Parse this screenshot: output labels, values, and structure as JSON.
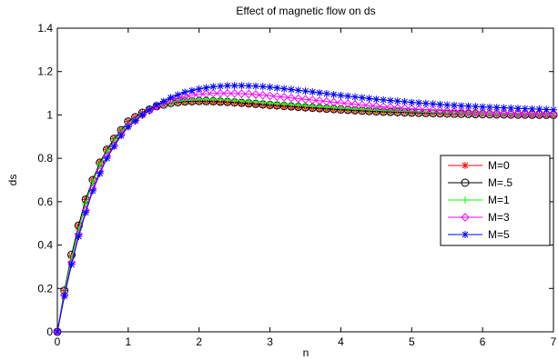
{
  "chart_data": {
    "type": "line",
    "title": "Effect of magnetic flow on ds",
    "xlabel": "n",
    "ylabel": "ds",
    "xlim": [
      0,
      7
    ],
    "ylim": [
      0,
      1.4
    ],
    "xticks": [
      0,
      1,
      2,
      3,
      4,
      5,
      6,
      7
    ],
    "yticks": [
      0,
      0.2,
      0.4,
      0.6,
      0.8,
      1,
      1.2,
      1.4
    ],
    "grid": false,
    "legend_position": "right",
    "series": [
      {
        "name": "M=0",
        "color": "#ff0000",
        "marker": "star",
        "x": [
          0,
          0.1,
          0.2,
          0.3,
          0.4,
          0.5,
          0.6,
          0.7,
          0.8,
          0.9,
          1.0,
          1.2,
          1.4,
          1.6,
          1.8,
          2.0,
          2.2,
          2.4,
          2.6,
          2.8,
          3.0,
          3.5,
          4.0,
          4.5,
          5.0,
          5.5,
          6.0,
          6.5,
          7.0
        ],
        "y": [
          0,
          0.19,
          0.35,
          0.49,
          0.61,
          0.7,
          0.78,
          0.84,
          0.89,
          0.93,
          0.97,
          1.01,
          1.04,
          1.055,
          1.06,
          1.062,
          1.06,
          1.057,
          1.053,
          1.048,
          1.043,
          1.032,
          1.022,
          1.014,
          1.009,
          1.005,
          1.003,
          1.001,
          1.0
        ]
      },
      {
        "name": "M=.5",
        "color": "#000000",
        "marker": "circle",
        "x": [
          0,
          0.1,
          0.2,
          0.3,
          0.4,
          0.5,
          0.6,
          0.7,
          0.8,
          0.9,
          1.0,
          1.2,
          1.4,
          1.6,
          1.8,
          2.0,
          2.2,
          2.4,
          2.6,
          2.8,
          3.0,
          3.5,
          4.0,
          4.5,
          5.0,
          5.5,
          6.0,
          6.5,
          7.0
        ],
        "y": [
          0,
          0.19,
          0.355,
          0.49,
          0.61,
          0.7,
          0.78,
          0.84,
          0.89,
          0.93,
          0.97,
          1.01,
          1.04,
          1.055,
          1.062,
          1.064,
          1.063,
          1.06,
          1.056,
          1.051,
          1.046,
          1.035,
          1.025,
          1.016,
          1.01,
          1.006,
          1.003,
          1.001,
          1.0
        ]
      },
      {
        "name": "M=1",
        "color": "#00ff00",
        "marker": "plus",
        "x": [
          0,
          0.1,
          0.2,
          0.3,
          0.4,
          0.5,
          0.6,
          0.7,
          0.8,
          0.9,
          1.0,
          1.2,
          1.4,
          1.6,
          1.8,
          2.0,
          2.2,
          2.4,
          2.6,
          2.8,
          3.0,
          3.5,
          4.0,
          4.5,
          5.0,
          5.5,
          6.0,
          6.5,
          7.0
        ],
        "y": [
          0,
          0.18,
          0.34,
          0.47,
          0.59,
          0.69,
          0.77,
          0.83,
          0.88,
          0.925,
          0.96,
          1.005,
          1.04,
          1.058,
          1.068,
          1.072,
          1.072,
          1.07,
          1.066,
          1.061,
          1.056,
          1.044,
          1.032,
          1.022,
          1.015,
          1.009,
          1.005,
          1.003,
          1.0
        ]
      },
      {
        "name": "M=3",
        "color": "#ff00ff",
        "marker": "diamond",
        "x": [
          0,
          0.1,
          0.2,
          0.3,
          0.4,
          0.5,
          0.6,
          0.7,
          0.8,
          0.9,
          1.0,
          1.2,
          1.4,
          1.6,
          1.8,
          2.0,
          2.2,
          2.4,
          2.6,
          2.8,
          3.0,
          3.5,
          4.0,
          4.5,
          5.0,
          5.5,
          6.0,
          6.5,
          7.0
        ],
        "y": [
          0,
          0.17,
          0.32,
          0.45,
          0.56,
          0.66,
          0.74,
          0.81,
          0.86,
          0.91,
          0.95,
          1.0,
          1.04,
          1.07,
          1.085,
          1.095,
          1.1,
          1.1,
          1.098,
          1.094,
          1.088,
          1.072,
          1.055,
          1.04,
          1.028,
          1.018,
          1.011,
          1.006,
          1.003
        ]
      },
      {
        "name": "M=5",
        "color": "#0000ff",
        "marker": "asterisk",
        "x": [
          0,
          0.1,
          0.2,
          0.3,
          0.4,
          0.5,
          0.6,
          0.7,
          0.8,
          0.9,
          1.0,
          1.2,
          1.4,
          1.6,
          1.8,
          2.0,
          2.2,
          2.4,
          2.6,
          2.8,
          3.0,
          3.5,
          4.0,
          4.5,
          5.0,
          5.5,
          6.0,
          6.5,
          7.0
        ],
        "y": [
          0,
          0.165,
          0.31,
          0.44,
          0.55,
          0.65,
          0.73,
          0.8,
          0.855,
          0.905,
          0.945,
          1.0,
          1.045,
          1.08,
          1.105,
          1.12,
          1.13,
          1.135,
          1.135,
          1.133,
          1.128,
          1.11,
          1.09,
          1.072,
          1.058,
          1.046,
          1.037,
          1.03,
          1.024
        ]
      }
    ]
  }
}
